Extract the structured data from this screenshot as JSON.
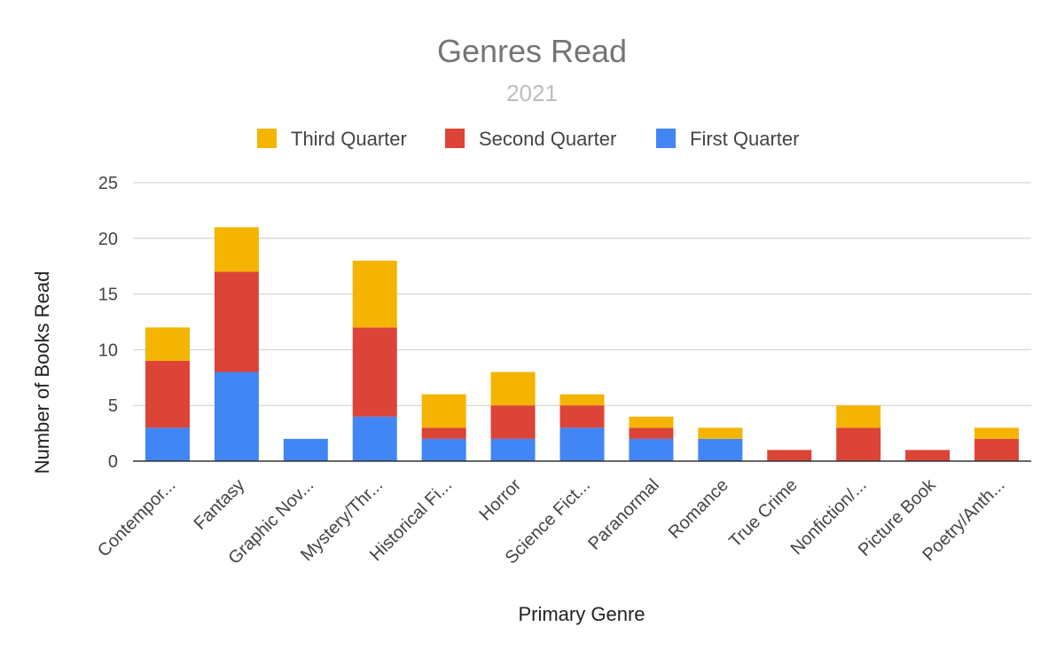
{
  "chart_data": {
    "type": "bar",
    "stacked": true,
    "title": "Genres Read",
    "subtitle": "2021",
    "xlabel": "Primary Genre",
    "ylabel": "Number of Books Read",
    "ylim": [
      0,
      25
    ],
    "yticks": [
      0,
      5,
      10,
      15,
      20,
      25
    ],
    "grid": true,
    "legend_position": "top",
    "categories": [
      "Contempor...",
      "Fantasy",
      "Graphic Nov...",
      "Mystery/Thr...",
      "Historical Fi...",
      "Horror",
      "Science Fict...",
      "Paranormal",
      "Romance",
      "True Crime",
      "Nonfiction/...",
      "Picture Book",
      "Poetry/Anth..."
    ],
    "series": [
      {
        "name": "First Quarter",
        "color": "#4285f4",
        "values": [
          3,
          8,
          2,
          4,
          2,
          2,
          3,
          2,
          2,
          0,
          0,
          0,
          0
        ]
      },
      {
        "name": "Second Quarter",
        "color": "#db4437",
        "values": [
          6,
          9,
          0,
          8,
          1,
          3,
          2,
          1,
          0,
          1,
          3,
          1,
          2
        ]
      },
      {
        "name": "Third Quarter",
        "color": "#f4b400",
        "values": [
          3,
          4,
          0,
          6,
          3,
          3,
          1,
          1,
          1,
          0,
          2,
          0,
          1
        ]
      }
    ],
    "legend_order": [
      "Third Quarter",
      "Second Quarter",
      "First Quarter"
    ]
  }
}
